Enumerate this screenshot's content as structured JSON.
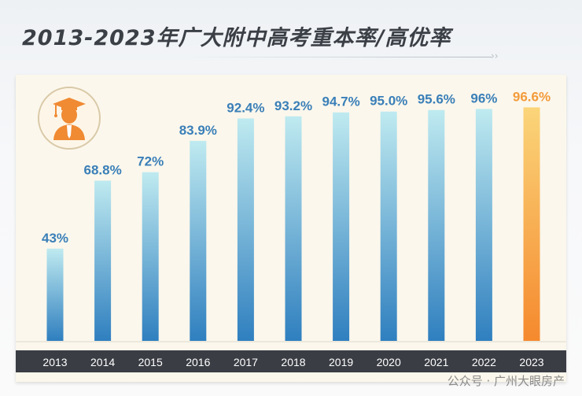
{
  "title": "2013-2023年广大附中高考重本率/高优率",
  "watermark": "公众号 · 广州大眼房产",
  "chart_data": {
    "type": "bar",
    "title": "2013-2023年广大附中高考重本率/高优率",
    "xlabel": "",
    "ylabel": "",
    "categories": [
      "2013",
      "2014",
      "2015",
      "2016",
      "2017",
      "2018",
      "2019",
      "2020",
      "2021",
      "2022",
      "2023"
    ],
    "values": [
      43,
      68.8,
      72,
      83.9,
      92.4,
      93.2,
      94.7,
      95.0,
      95.6,
      96,
      96.6
    ],
    "labels": [
      "43%",
      "68.8%",
      "72%",
      "83.9%",
      "92.4%",
      "93.2%",
      "94.7%",
      "95.0%",
      "95.6%",
      "96%",
      "96.6%"
    ],
    "highlight_index": 10,
    "ylim": [
      8,
      100
    ],
    "grid": false,
    "colors": {
      "bar_top": "#bfeaf0",
      "bar_bottom": "#2f7fbf",
      "label": "#3a7fb8",
      "highlight_top": "#fbd57a",
      "highlight_bottom": "#f5892e",
      "highlight_label": "#f39b3a"
    }
  }
}
